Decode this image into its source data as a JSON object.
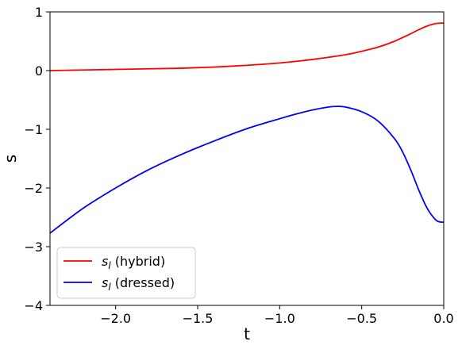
{
  "chart_data": {
    "type": "line",
    "xlabel": "t",
    "ylabel": "s",
    "xlim": [
      -2.4,
      0.0
    ],
    "ylim": [
      -4,
      1
    ],
    "xticks": [
      {
        "value": -2.0,
        "label": "−2.0"
      },
      {
        "value": -1.5,
        "label": "−1.5"
      },
      {
        "value": -1.0,
        "label": "−1.0"
      },
      {
        "value": -0.5,
        "label": "−0.5"
      },
      {
        "value": 0.0,
        "label": "0.0"
      }
    ],
    "yticks": [
      {
        "value": 1,
        "label": "1"
      },
      {
        "value": 0,
        "label": "0"
      },
      {
        "value": -1,
        "label": "−1"
      },
      {
        "value": -2,
        "label": "−2"
      },
      {
        "value": -3,
        "label": "−3"
      },
      {
        "value": -4,
        "label": "−4"
      }
    ],
    "grid": false,
    "legend_position": "bottom-left",
    "series": [
      {
        "name": "s_l (hybrid)",
        "legend_symbol": "s",
        "legend_subscript": "l",
        "legend_suffix": " (hybrid)",
        "color": "#ff0000",
        "x": [
          -2.4,
          -2.2,
          -2.0,
          -1.8,
          -1.6,
          -1.4,
          -1.2,
          -1.0,
          -0.8,
          -0.6,
          -0.5,
          -0.4,
          -0.3,
          -0.2,
          -0.15,
          -0.1,
          -0.05,
          0.0
        ],
        "y": [
          0.0,
          0.01,
          0.02,
          0.03,
          0.04,
          0.06,
          0.09,
          0.13,
          0.19,
          0.27,
          0.33,
          0.4,
          0.5,
          0.63,
          0.7,
          0.76,
          0.8,
          0.81
        ]
      },
      {
        "name": "s_l (dressed)",
        "legend_symbol": "s",
        "legend_subscript": "l",
        "legend_suffix": " (dressed)",
        "color": "#0000ff",
        "x": [
          -2.4,
          -2.2,
          -2.0,
          -1.8,
          -1.6,
          -1.4,
          -1.2,
          -1.0,
          -0.9,
          -0.8,
          -0.7,
          -0.65,
          -0.6,
          -0.5,
          -0.4,
          -0.3,
          -0.25,
          -0.2,
          -0.15,
          -0.1,
          -0.05,
          -0.02,
          0.0
        ],
        "y": [
          -2.77,
          -2.35,
          -2.0,
          -1.69,
          -1.43,
          -1.2,
          -0.99,
          -0.82,
          -0.74,
          -0.67,
          -0.62,
          -0.61,
          -0.62,
          -0.7,
          -0.86,
          -1.16,
          -1.39,
          -1.7,
          -2.05,
          -2.35,
          -2.54,
          -2.58,
          -2.58
        ]
      }
    ]
  }
}
